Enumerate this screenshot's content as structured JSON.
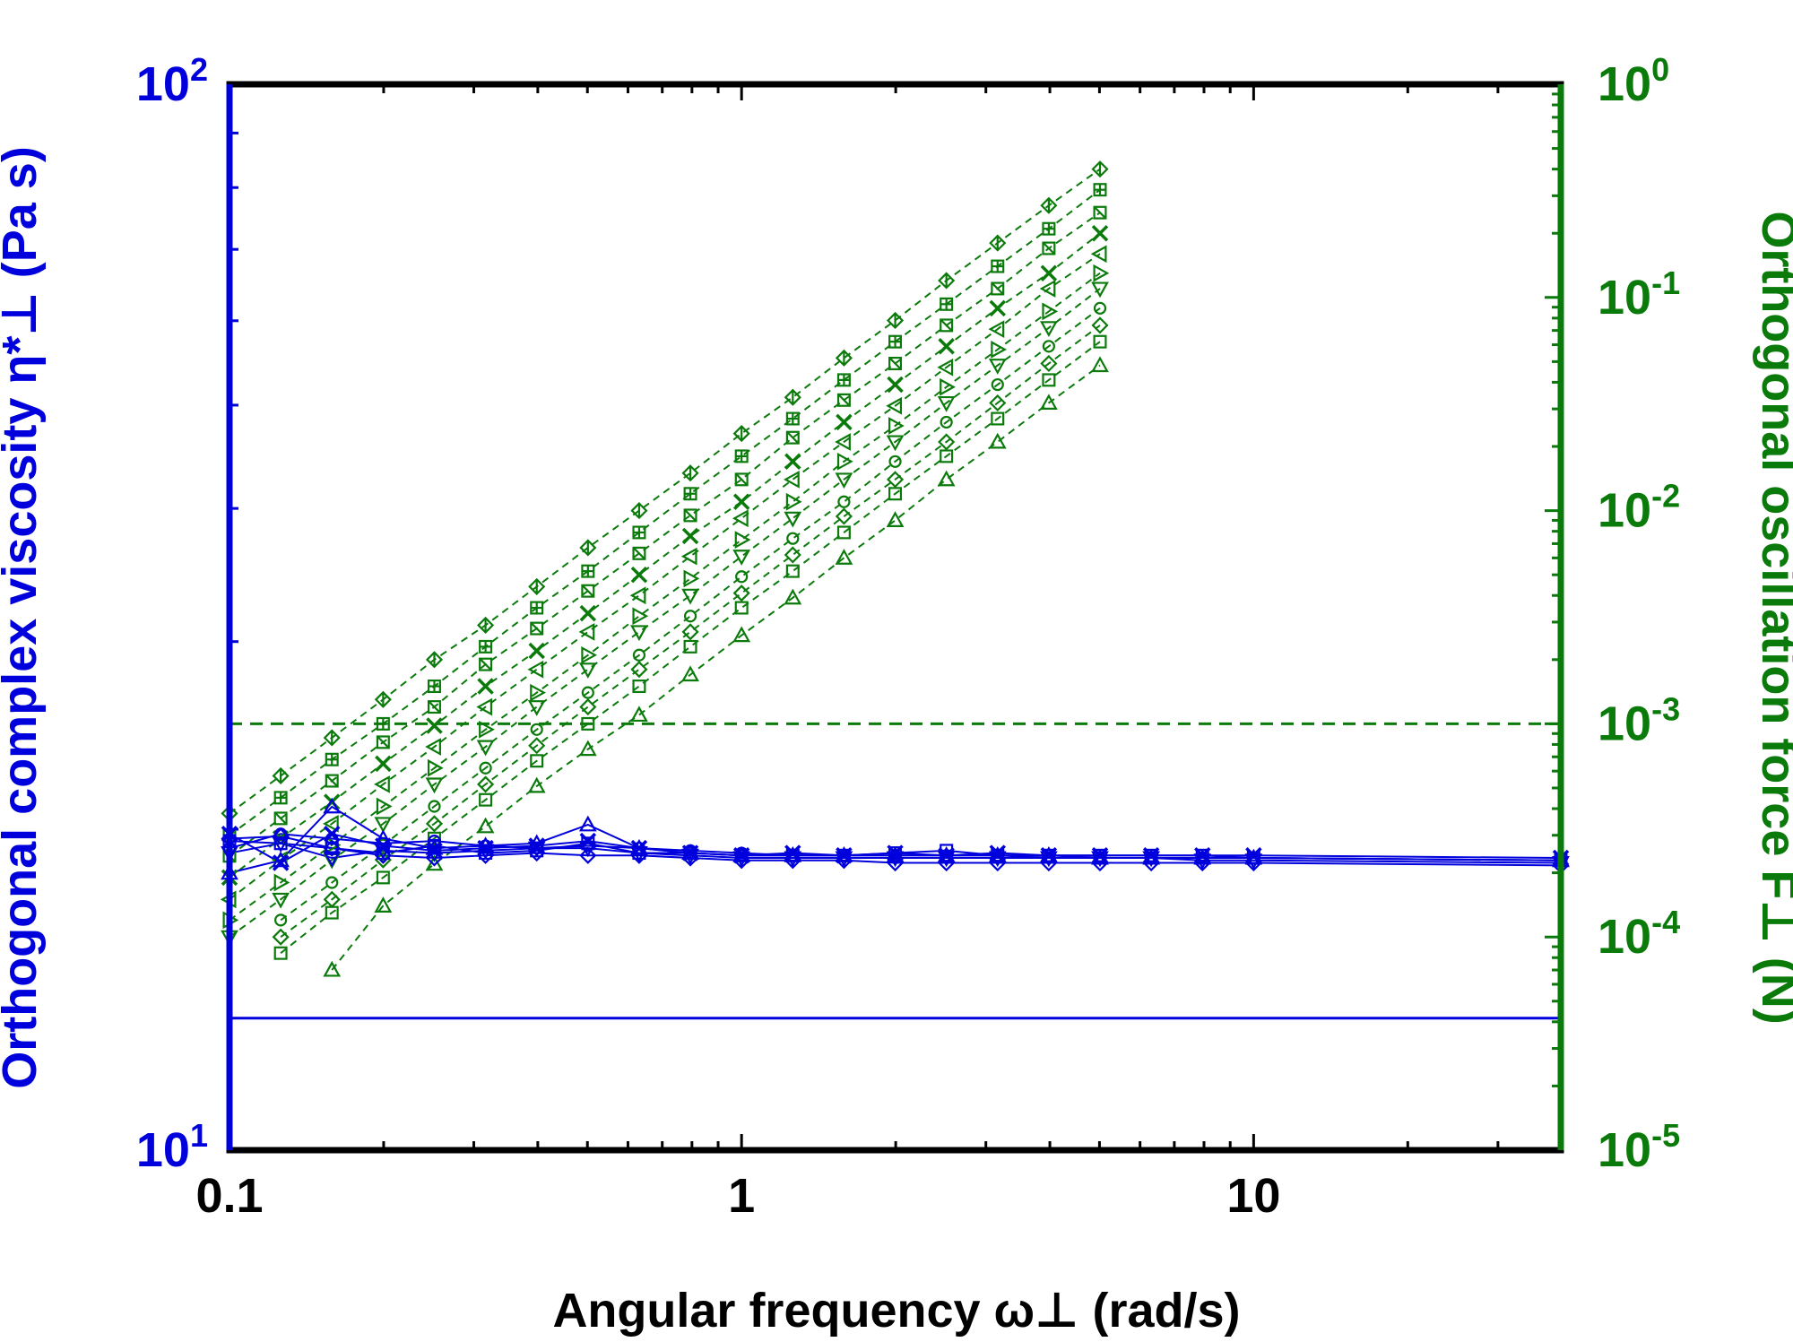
{
  "chart_data": {
    "type": "scatter",
    "xlabel": "Angular frequency ω⊥ (rad/s)",
    "ylabel_left": "Orthogonal complex viscosity η*⊥ (Pa s)",
    "ylabel_right": "Orthogonal oscillation force F⊥ (N)",
    "x_scale": "log",
    "y_left_scale": "log",
    "y_right_scale": "log",
    "xlim": [
      0.1,
      39.8
    ],
    "ylim_left": [
      10,
      100
    ],
    "ylim_right": [
      1e-05,
      1
    ],
    "x_tick_labels": [
      {
        "value": 0.1,
        "label": "0.1"
      },
      {
        "value": 1,
        "label": "1"
      },
      {
        "value": 10,
        "label": "10"
      }
    ],
    "y_left_tick_labels": [
      {
        "value": 10,
        "base": "10",
        "exp": "1"
      },
      {
        "value": 100,
        "base": "10",
        "exp": "2"
      }
    ],
    "y_right_tick_labels": [
      {
        "value": 1e-05,
        "base": "10",
        "exp": "-5"
      },
      {
        "value": 0.0001,
        "base": "10",
        "exp": "-4"
      },
      {
        "value": 0.001,
        "base": "10",
        "exp": "-3"
      },
      {
        "value": 0.01,
        "base": "10",
        "exp": "-2"
      },
      {
        "value": 0.1,
        "base": "10",
        "exp": "-1"
      },
      {
        "value": 1,
        "base": "10",
        "exp": "0"
      }
    ],
    "grid": false,
    "colors": {
      "left_axis": "#0000dd",
      "right_axis": "#0a7a0a",
      "frame": "#000000"
    },
    "force_series": [
      {
        "marker": "triangle-up",
        "start_index": 2,
        "values": [
          7e-05,
          0.00014,
          0.00022,
          0.00033,
          0.00051,
          0.00076,
          0.0011,
          0.0017,
          0.0026,
          0.0039,
          0.006,
          0.009,
          0.014,
          0.021,
          0.032,
          0.048
        ]
      },
      {
        "marker": "square",
        "start_index": 1,
        "values": [
          8.4e-05,
          0.00013,
          0.00019,
          0.00029,
          0.00044,
          0.00067,
          0.001,
          0.0015,
          0.0023,
          0.0035,
          0.0052,
          0.0079,
          0.012,
          0.018,
          0.027,
          0.041,
          0.062
        ]
      },
      {
        "marker": "diamond",
        "start_index": 1,
        "values": [
          0.0001,
          0.00015,
          0.00023,
          0.00034,
          0.00052,
          0.00079,
          0.0012,
          0.0018,
          0.0027,
          0.0041,
          0.0062,
          0.0094,
          0.014,
          0.021,
          0.032,
          0.049,
          0.074
        ]
      },
      {
        "marker": "circle",
        "start_index": 1,
        "values": [
          0.00012,
          0.00018,
          0.00027,
          0.00041,
          0.00062,
          0.00094,
          0.0014,
          0.0021,
          0.0032,
          0.0049,
          0.0074,
          0.011,
          0.017,
          0.026,
          0.039,
          0.059,
          0.089
        ]
      },
      {
        "marker": "triangle-down",
        "start_index": 0,
        "values": [
          0.0001,
          0.00015,
          0.00023,
          0.00034,
          0.00052,
          0.00078,
          0.0012,
          0.0018,
          0.0027,
          0.004,
          0.0061,
          0.0092,
          0.014,
          0.021,
          0.032,
          0.048,
          0.072,
          0.11
        ]
      },
      {
        "marker": "triangle-right",
        "start_index": 0,
        "values": [
          0.00012,
          0.00018,
          0.00027,
          0.00041,
          0.00062,
          0.00094,
          0.0014,
          0.0021,
          0.0032,
          0.0048,
          0.0073,
          0.011,
          0.017,
          0.025,
          0.038,
          0.057,
          0.086,
          0.13
        ]
      },
      {
        "marker": "triangle-left",
        "start_index": 0,
        "values": [
          0.00015,
          0.00023,
          0.00034,
          0.00052,
          0.00078,
          0.0012,
          0.0018,
          0.0027,
          0.004,
          0.0061,
          0.0092,
          0.014,
          0.021,
          0.031,
          0.047,
          0.071,
          0.11,
          0.16
        ]
      },
      {
        "marker": "x",
        "start_index": 0,
        "values": [
          0.00019,
          0.00029,
          0.00043,
          0.00065,
          0.00098,
          0.0015,
          0.0022,
          0.0033,
          0.005,
          0.0076,
          0.011,
          0.017,
          0.026,
          0.039,
          0.059,
          0.089,
          0.13,
          0.2
        ]
      },
      {
        "marker": "square-slash",
        "start_index": 0,
        "values": [
          0.00024,
          0.00036,
          0.00054,
          0.00082,
          0.0012,
          0.0019,
          0.0028,
          0.0042,
          0.0063,
          0.0095,
          0.014,
          0.022,
          0.033,
          0.049,
          0.074,
          0.11,
          0.17,
          0.25
        ]
      },
      {
        "marker": "square-cross",
        "start_index": 0,
        "values": [
          0.0003,
          0.00045,
          0.00068,
          0.001,
          0.0015,
          0.0023,
          0.0035,
          0.0052,
          0.0079,
          0.012,
          0.018,
          0.027,
          0.041,
          0.062,
          0.093,
          0.14,
          0.21,
          0.32
        ]
      },
      {
        "marker": "diamond-bar",
        "start_index": 0,
        "values": [
          0.00038,
          0.00057,
          0.00086,
          0.0013,
          0.002,
          0.0029,
          0.0044,
          0.0067,
          0.01,
          0.015,
          0.023,
          0.034,
          0.052,
          0.078,
          0.12,
          0.18,
          0.27,
          0.4
        ]
      }
    ],
    "force_reference_line": {
      "value": 0.001,
      "x_range": [
        0.1,
        39.8
      ],
      "style": "dashed"
    },
    "viscosity_series": [
      {
        "marker": "square",
        "values": [
          19.5,
          19.4,
          19.2,
          19.0,
          19.3,
          19.0,
          19.1,
          19.4,
          19.0,
          19.0,
          18.9,
          18.9,
          18.9,
          19.0,
          19.1,
          18.9,
          18.9,
          18.9,
          18.9,
          18.9,
          18.8,
          18.7
        ]
      },
      {
        "marker": "circle",
        "values": [
          19.2,
          19.8,
          19.6,
          19.4,
          19.5,
          19.3,
          19.2,
          19.3,
          19.2,
          19.1,
          19.0,
          18.9,
          18.9,
          18.9,
          18.9,
          18.9,
          18.8,
          18.8,
          18.8,
          18.8,
          18.8,
          18.7
        ]
      },
      {
        "marker": "diamond",
        "values": [
          19.6,
          19.7,
          19.2,
          18.9,
          18.8,
          18.9,
          19.0,
          18.9,
          18.9,
          18.8,
          18.7,
          18.7,
          18.7,
          18.6,
          18.6,
          18.6,
          18.6,
          18.6,
          18.6,
          18.6,
          18.6,
          18.5
        ]
      },
      {
        "marker": "triangle-up",
        "values": [
          18.2,
          18.7,
          21.0,
          19.6,
          19.2,
          19.3,
          19.4,
          20.2,
          19.2,
          19.0,
          18.9,
          18.9,
          18.9,
          18.9,
          18.9,
          18.9,
          18.9,
          18.8,
          18.8,
          18.8,
          18.8,
          18.7
        ]
      },
      {
        "marker": "triangle-down",
        "values": [
          19.0,
          19.4,
          18.8,
          19.1,
          19.0,
          19.1,
          19.2,
          19.2,
          19.0,
          18.9,
          18.8,
          18.8,
          18.8,
          18.8,
          18.8,
          18.8,
          18.8,
          18.8,
          18.8,
          18.7,
          18.7,
          18.6
        ]
      },
      {
        "marker": "x",
        "values": [
          19.8,
          18.6,
          19.8,
          19.3,
          19.1,
          19.2,
          19.3,
          19.5,
          19.2,
          19.0,
          18.9,
          19.0,
          18.9,
          19.0,
          18.9,
          19.0,
          18.9,
          18.9,
          18.9,
          18.9,
          18.9,
          18.8
        ]
      }
    ],
    "viscosity_reference_line": {
      "value": 13.3,
      "x_range": [
        0.1,
        39.8
      ],
      "style": "solid"
    }
  }
}
